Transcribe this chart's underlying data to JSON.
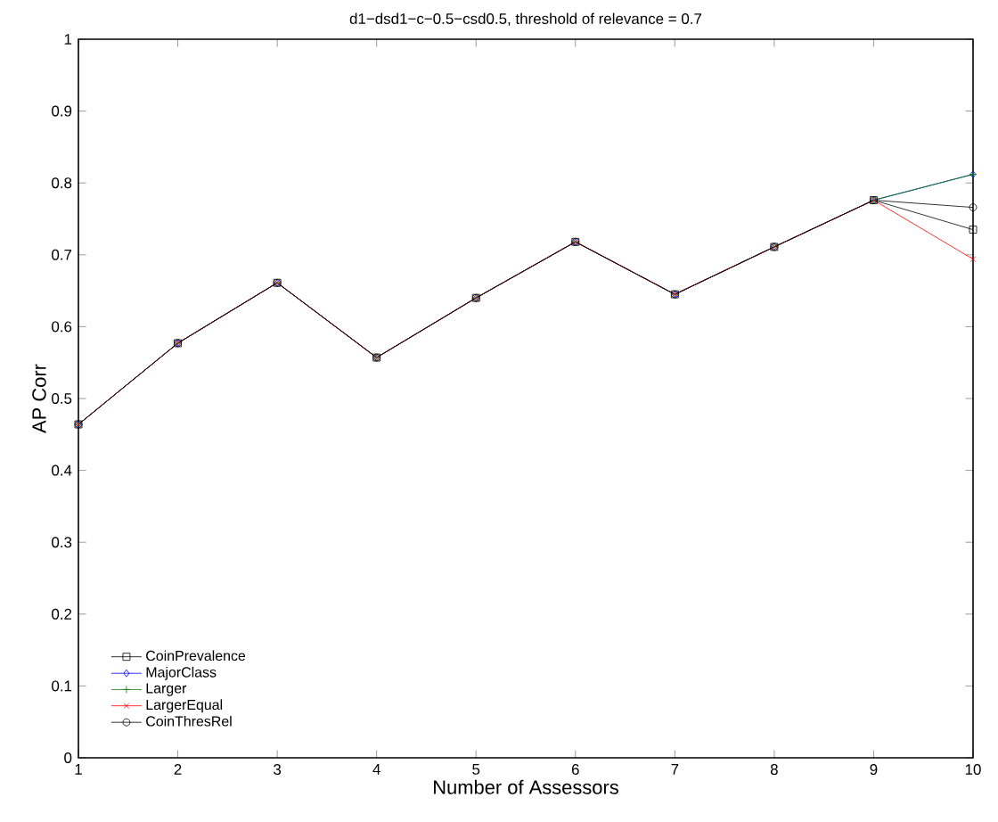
{
  "chart_data": {
    "type": "line",
    "title": "d1−dsd1−c−0.5−csd0.5, threshold of relevance = 0.7",
    "xlabel": "Number of Assessors",
    "ylabel": "AP Corr",
    "x": [
      1,
      2,
      3,
      4,
      5,
      6,
      7,
      8,
      9,
      10
    ],
    "series": [
      {
        "name": "CoinPrevalence",
        "color": "#000000",
        "marker": "square",
        "values": [
          0.464,
          0.577,
          0.661,
          0.557,
          0.64,
          0.718,
          0.645,
          0.711,
          0.776,
          0.735
        ]
      },
      {
        "name": "MajorClass",
        "color": "#0000ff",
        "marker": "diamond",
        "values": [
          0.464,
          0.577,
          0.661,
          0.557,
          0.64,
          0.718,
          0.645,
          0.711,
          0.776,
          0.812
        ]
      },
      {
        "name": "Larger",
        "color": "#008000",
        "marker": "cross",
        "values": [
          0.464,
          0.577,
          0.661,
          0.557,
          0.64,
          0.718,
          0.645,
          0.711,
          0.776,
          0.812
        ]
      },
      {
        "name": "LargerEqual",
        "color": "#ff0000",
        "marker": "x",
        "values": [
          0.464,
          0.577,
          0.661,
          0.557,
          0.64,
          0.718,
          0.645,
          0.711,
          0.776,
          0.694
        ]
      },
      {
        "name": "CoinThresRel",
        "color": "#000000",
        "marker": "circle",
        "values": [
          0.464,
          0.577,
          0.661,
          0.557,
          0.64,
          0.718,
          0.645,
          0.711,
          0.776,
          0.766
        ]
      }
    ],
    "xlim": [
      1,
      10
    ],
    "ylim": [
      0,
      1
    ],
    "xticks": [
      1,
      2,
      3,
      4,
      5,
      6,
      7,
      8,
      9,
      10
    ],
    "yticks": [
      0,
      0.1,
      0.2,
      0.3,
      0.4,
      0.5,
      0.6,
      0.7,
      0.8,
      0.9,
      1
    ],
    "grid": false,
    "legend": "bottom left",
    "line_style": "solid"
  }
}
